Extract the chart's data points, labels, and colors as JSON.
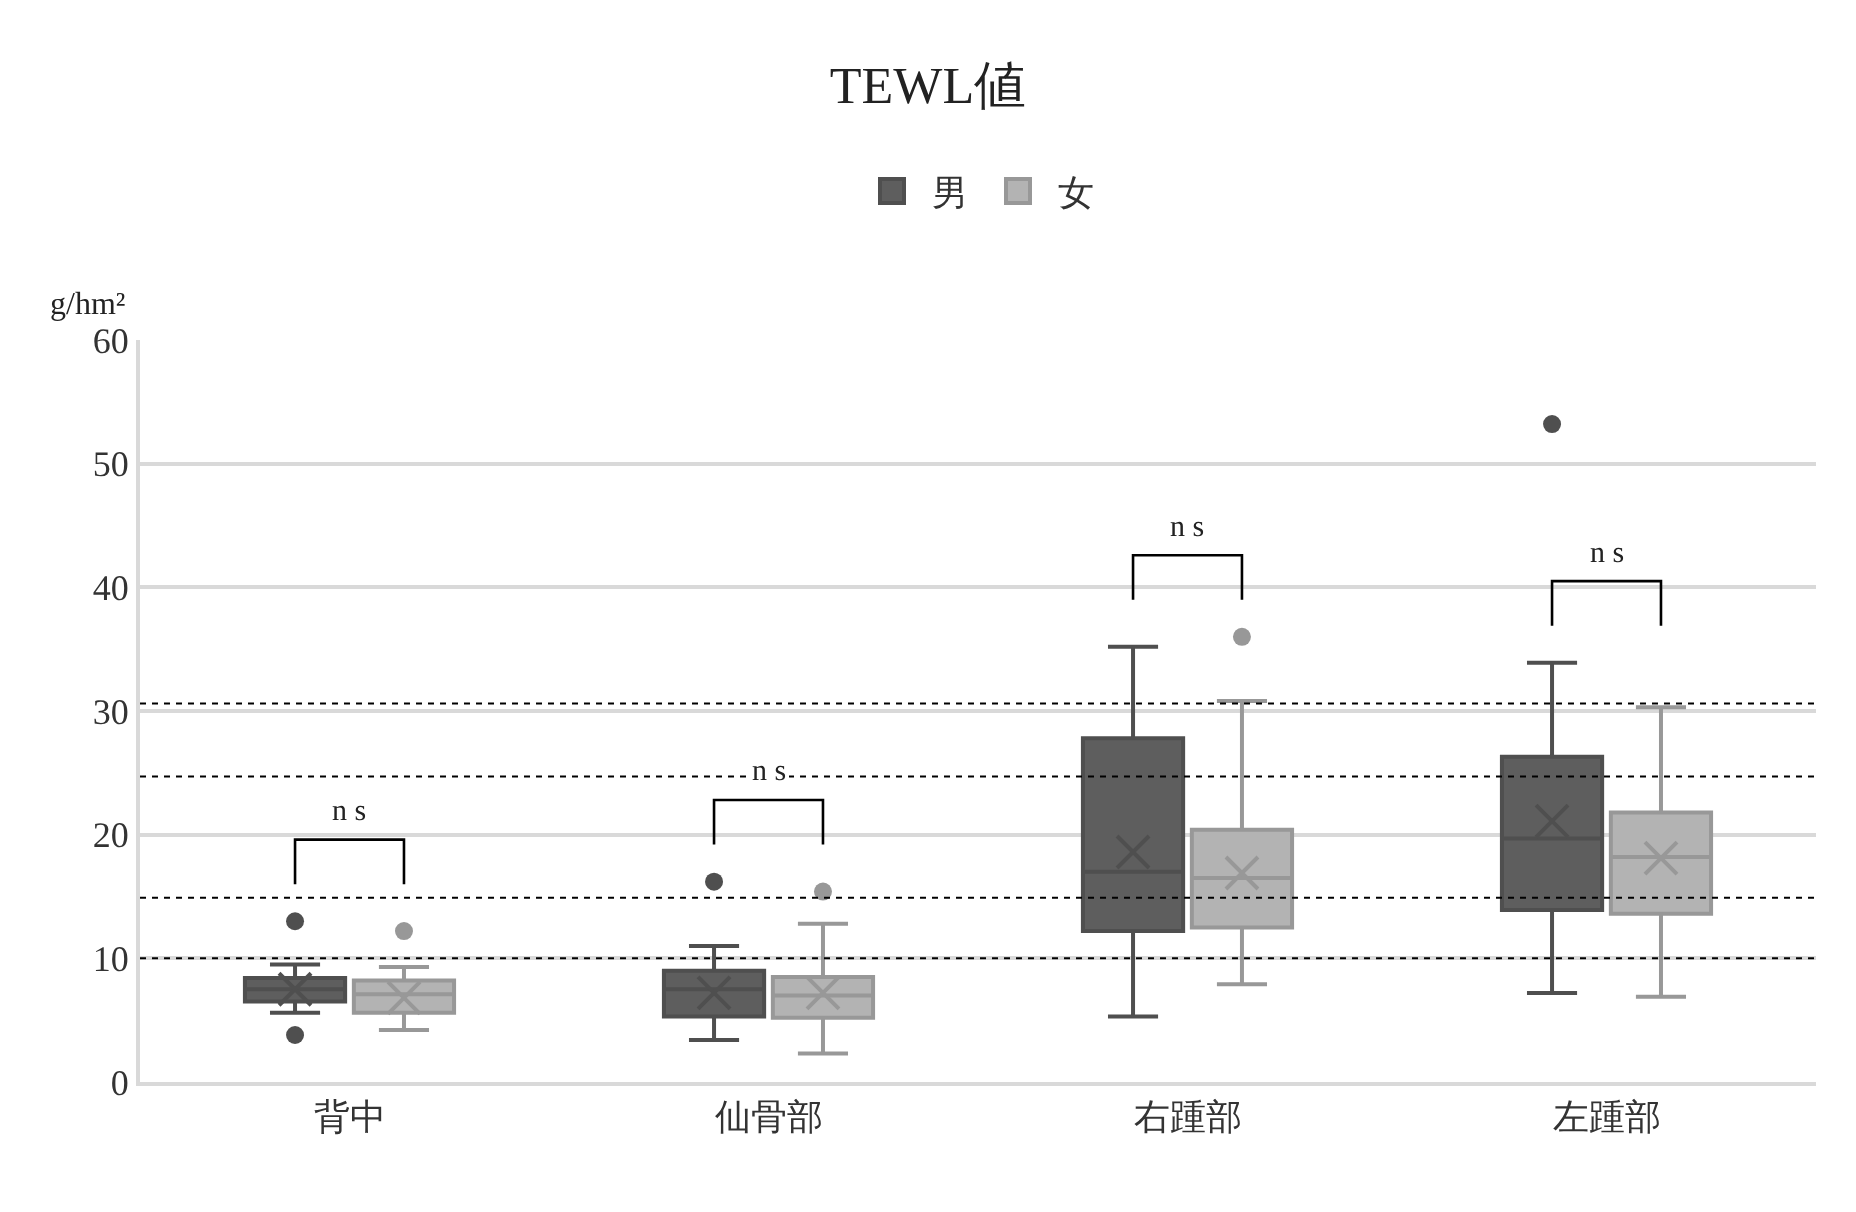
{
  "chart_data": {
    "type": "box",
    "title": "TEWL値",
    "ylabel": "g/hm²",
    "categories": [
      "背中",
      "仙骨部",
      "右踵部",
      "左踵部"
    ],
    "series": [
      {
        "name": "男",
        "color": "#5e5e5e",
        "boxes": [
          {
            "low": 5.6,
            "q1": 6.5,
            "median": 7.5,
            "q3": 8.4,
            "high": 9.5,
            "mean": 7.5,
            "outliers": [
              13.0,
              3.8
            ]
          },
          {
            "low": 3.4,
            "q1": 5.3,
            "median": 7.5,
            "q3": 9.0,
            "high": 11.0,
            "mean": 7.2,
            "outliers": [
              16.2
            ]
          },
          {
            "low": 5.3,
            "q1": 12.2,
            "median": 17.0,
            "q3": 27.8,
            "high": 35.2,
            "mean": 18.6
          },
          {
            "low": 7.2,
            "q1": 13.9,
            "median": 19.7,
            "q3": 26.3,
            "high": 33.9,
            "mean": 21.1,
            "outliers": [
              53.2
            ]
          }
        ]
      },
      {
        "name": "女",
        "color": "#b3b3b3",
        "boxes": [
          {
            "low": 4.2,
            "q1": 5.6,
            "median": 7.1,
            "q3": 8.2,
            "high": 9.3,
            "mean": 6.8,
            "outliers": [
              12.2
            ]
          },
          {
            "low": 2.3,
            "q1": 5.2,
            "median": 7.0,
            "q3": 8.5,
            "high": 12.8,
            "mean": 7.2,
            "outliers": [
              15.4
            ]
          },
          {
            "low": 7.9,
            "q1": 12.5,
            "median": 16.5,
            "q3": 20.4,
            "high": 30.8,
            "mean": 16.9,
            "outliers": [
              36.0
            ]
          },
          {
            "low": 6.9,
            "q1": 13.6,
            "median": 18.2,
            "q3": 21.8,
            "high": 30.3,
            "mean": 18.1
          }
        ]
      }
    ],
    "ylim": [
      0,
      60
    ],
    "yticks": [
      0,
      10,
      20,
      30,
      40,
      50,
      60
    ],
    "grid": "y",
    "legend": "top",
    "ref_lines": [
      {
        "axis": "y",
        "value": 30.6,
        "color": "#000000",
        "line_style": "dotted"
      },
      {
        "axis": "y",
        "value": 24.7,
        "color": "#000000",
        "line_style": "dotted"
      },
      {
        "axis": "y",
        "value": 14.9,
        "color": "#000000",
        "line_style": "dotted"
      },
      {
        "axis": "y",
        "value": 10.0,
        "color": "#000000",
        "line_style": "dotted"
      }
    ],
    "annotations": [
      "n s",
      "n s",
      "n s",
      "n s"
    ]
  }
}
